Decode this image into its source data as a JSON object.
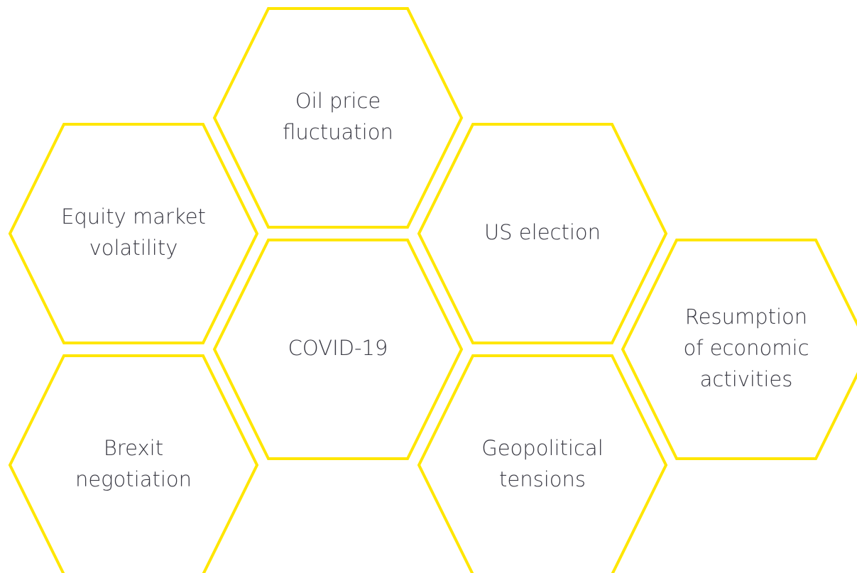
{
  "nodes": [
    {
      "lines": [
        "Oil price",
        "fluctuation"
      ]
    },
    {
      "lines": [
        "Equity market",
        "volatility"
      ]
    },
    {
      "lines": [
        "US election"
      ]
    },
    {
      "lines": [
        "COVID-19"
      ]
    },
    {
      "lines": [
        "Resumption",
        "of economic",
        "activities"
      ]
    },
    {
      "lines": [
        "Brexit",
        "negotiation"
      ]
    },
    {
      "lines": [
        "Geopolitical",
        "tensions"
      ]
    }
  ]
}
